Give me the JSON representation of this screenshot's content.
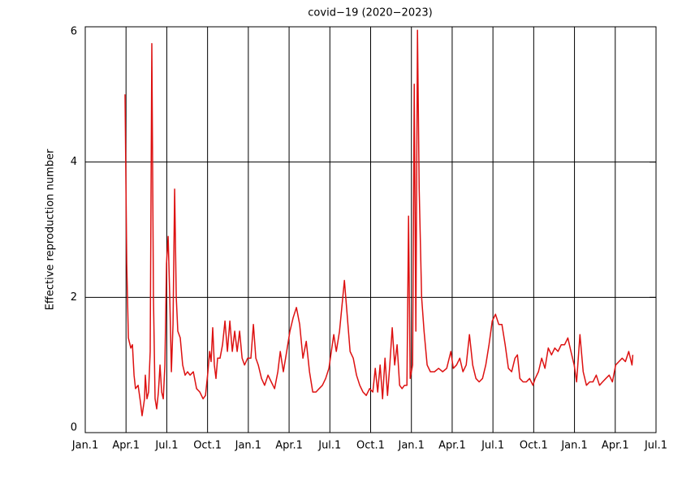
{
  "chart_data": {
    "type": "line",
    "title": "covid−19 (2020−2023)",
    "y_label": "Effective reproduction number",
    "color": "#dd1111",
    "grid": true,
    "xlim": [
      0,
      42
    ],
    "ylim": [
      0,
      6
    ],
    "xticks": [
      {
        "value": 0,
        "label": "Jan.1"
      },
      {
        "value": 3,
        "label": "Apr.1"
      },
      {
        "value": 6,
        "label": "Jul.1"
      },
      {
        "value": 9,
        "label": "Oct.1"
      },
      {
        "value": 12,
        "label": "Jan.1"
      },
      {
        "value": 15,
        "label": "Apr.1"
      },
      {
        "value": 18,
        "label": "Jul.1"
      },
      {
        "value": 21,
        "label": "Oct.1"
      },
      {
        "value": 24,
        "label": "Jan.1"
      },
      {
        "value": 27,
        "label": "Apr.1"
      },
      {
        "value": 30,
        "label": "Jul.1"
      },
      {
        "value": 33,
        "label": "Oct.1"
      },
      {
        "value": 36,
        "label": "Jan.1"
      },
      {
        "value": 39,
        "label": "Apr.1"
      },
      {
        "value": 42,
        "label": "Jul.1"
      }
    ],
    "yticks": [
      0,
      2,
      4,
      6
    ],
    "x": [
      2.93,
      3.05,
      3.17,
      3.35,
      3.47,
      3.59,
      3.7,
      3.89,
      4.06,
      4.18,
      4.36,
      4.42,
      4.54,
      4.66,
      4.78,
      4.9,
      5.02,
      5.14,
      5.26,
      5.38,
      5.5,
      5.62,
      5.74,
      5.86,
      5.98,
      6.1,
      6.22,
      6.34,
      6.46,
      6.58,
      6.7,
      6.81,
      6.99,
      7.17,
      7.35,
      7.53,
      7.71,
      7.95,
      8.19,
      8.43,
      8.67,
      8.85,
      9.03,
      9.15,
      9.26,
      9.38,
      9.5,
      9.62,
      9.74,
      9.92,
      10.1,
      10.28,
      10.46,
      10.64,
      10.82,
      11.0,
      11.18,
      11.36,
      11.54,
      11.72,
      11.95,
      12.19,
      12.37,
      12.55,
      12.73,
      12.97,
      13.2,
      13.45,
      13.69,
      13.93,
      14.17,
      14.35,
      14.58,
      14.82,
      15.06,
      15.3,
      15.54,
      15.78,
      16.02,
      16.26,
      16.5,
      16.74,
      16.98,
      17.21,
      17.45,
      17.69,
      17.93,
      18.11,
      18.29,
      18.47,
      18.71,
      18.95,
      19.07,
      19.25,
      19.49,
      19.72,
      19.96,
      20.2,
      20.44,
      20.68,
      20.92,
      21.16,
      21.34,
      21.52,
      21.7,
      21.88,
      22.06,
      22.24,
      22.41,
      22.59,
      22.77,
      22.95,
      23.13,
      23.31,
      23.49,
      23.67,
      23.79,
      23.91,
      24.09,
      24.21,
      24.33,
      24.45,
      24.57,
      24.75,
      24.93,
      25.16,
      25.4,
      25.7,
      26.0,
      26.3,
      26.6,
      26.9,
      27.08,
      27.32,
      27.56,
      27.79,
      28.03,
      28.27,
      28.51,
      28.75,
      28.99,
      29.23,
      29.47,
      29.71,
      29.95,
      30.19,
      30.43,
      30.66,
      30.9,
      31.14,
      31.38,
      31.62,
      31.8,
      31.98,
      32.22,
      32.46,
      32.7,
      32.94,
      33.11,
      33.35,
      33.59,
      33.83,
      34.07,
      34.31,
      34.55,
      34.79,
      35.03,
      35.27,
      35.51,
      35.74,
      35.98,
      36.16,
      36.4,
      36.64,
      36.88,
      37.12,
      37.36,
      37.6,
      37.84,
      38.07,
      38.31,
      38.55,
      38.79,
      39.03,
      39.27,
      39.51,
      39.75,
      39.99,
      40.23,
      40.29
    ],
    "values": [
      5.0,
      2.5,
      1.4,
      1.25,
      1.3,
      0.85,
      0.65,
      0.7,
      0.45,
      0.25,
      0.5,
      0.85,
      0.5,
      0.6,
      1.2,
      5.75,
      2.0,
      0.5,
      0.35,
      0.6,
      1.0,
      0.6,
      0.5,
      1.0,
      2.5,
      2.9,
      2.0,
      0.9,
      1.6,
      3.6,
      2.0,
      1.5,
      1.4,
      1.0,
      0.85,
      0.9,
      0.85,
      0.9,
      0.65,
      0.6,
      0.5,
      0.55,
      0.9,
      1.2,
      1.05,
      1.55,
      1.0,
      0.8,
      1.1,
      1.1,
      1.3,
      1.65,
      1.2,
      1.65,
      1.2,
      1.5,
      1.2,
      1.5,
      1.1,
      1.0,
      1.1,
      1.1,
      1.6,
      1.1,
      1.0,
      0.8,
      0.7,
      0.85,
      0.75,
      0.65,
      0.9,
      1.2,
      0.9,
      1.2,
      1.5,
      1.7,
      1.85,
      1.6,
      1.1,
      1.35,
      0.9,
      0.6,
      0.6,
      0.65,
      0.7,
      0.8,
      0.95,
      1.2,
      1.45,
      1.2,
      1.5,
      2.0,
      2.25,
      1.8,
      1.2,
      1.1,
      0.85,
      0.7,
      0.6,
      0.55,
      0.65,
      0.6,
      0.95,
      0.6,
      1.0,
      0.5,
      1.1,
      0.55,
      1.0,
      1.55,
      1.0,
      1.3,
      0.7,
      0.65,
      0.7,
      0.7,
      3.2,
      0.8,
      1.0,
      5.15,
      1.5,
      5.95,
      3.6,
      2.0,
      1.5,
      1.0,
      0.9,
      0.9,
      0.95,
      0.9,
      0.95,
      1.2,
      0.95,
      1.0,
      1.1,
      0.9,
      1.0,
      1.45,
      1.0,
      0.8,
      0.75,
      0.8,
      1.0,
      1.3,
      1.65,
      1.75,
      1.6,
      1.6,
      1.3,
      0.95,
      0.9,
      1.1,
      1.15,
      0.8,
      0.75,
      0.75,
      0.8,
      0.7,
      0.8,
      0.9,
      1.1,
      0.95,
      1.25,
      1.15,
      1.25,
      1.2,
      1.3,
      1.3,
      1.4,
      1.2,
      1.0,
      0.75,
      1.45,
      0.9,
      0.7,
      0.75,
      0.75,
      0.85,
      0.7,
      0.75,
      0.8,
      0.85,
      0.75,
      1.0,
      1.05,
      1.1,
      1.05,
      1.2,
      1.0,
      1.15
    ]
  }
}
